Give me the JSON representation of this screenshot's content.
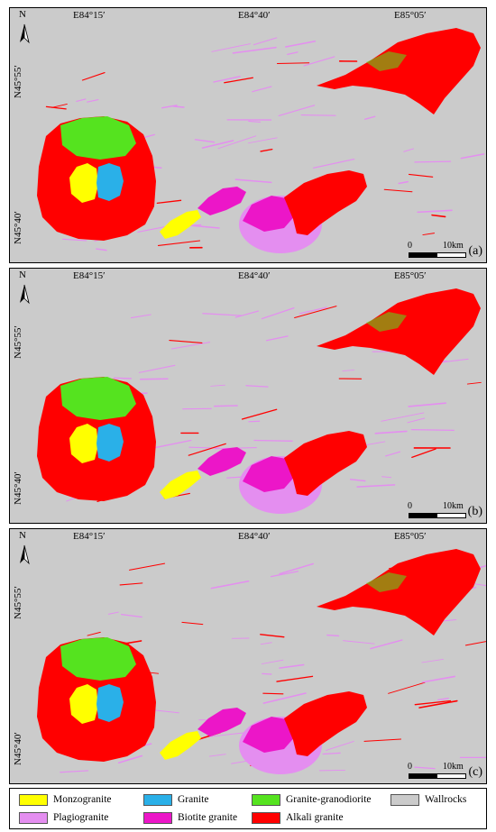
{
  "panels": [
    {
      "id": "a",
      "label": "(a)"
    },
    {
      "id": "b",
      "label": "(b)"
    },
    {
      "id": "c",
      "label": "(c)"
    }
  ],
  "map": {
    "north_letter": "N",
    "lon_labels": [
      "E84°15′",
      "E84°40′",
      "E85°05′"
    ],
    "lat_labels": [
      "N45°55′",
      "N45°40′"
    ],
    "scale": {
      "start": "0",
      "end": "10km"
    }
  },
  "legend": {
    "items": [
      {
        "label": "Monzogranite",
        "color": "#ffff00"
      },
      {
        "label": "Granite",
        "color": "#2ab0e8"
      },
      {
        "label": "Granite-granodiorite",
        "color": "#55e31f"
      },
      {
        "label": "Wallrocks",
        "color": "#cbcbcb"
      },
      {
        "label": "Plagiogranite",
        "color": "#e48ef0"
      },
      {
        "label": "Biotite granite",
        "color": "#ec16c8"
      },
      {
        "label": "Alkali granite",
        "color": "#ff0000"
      }
    ]
  }
}
